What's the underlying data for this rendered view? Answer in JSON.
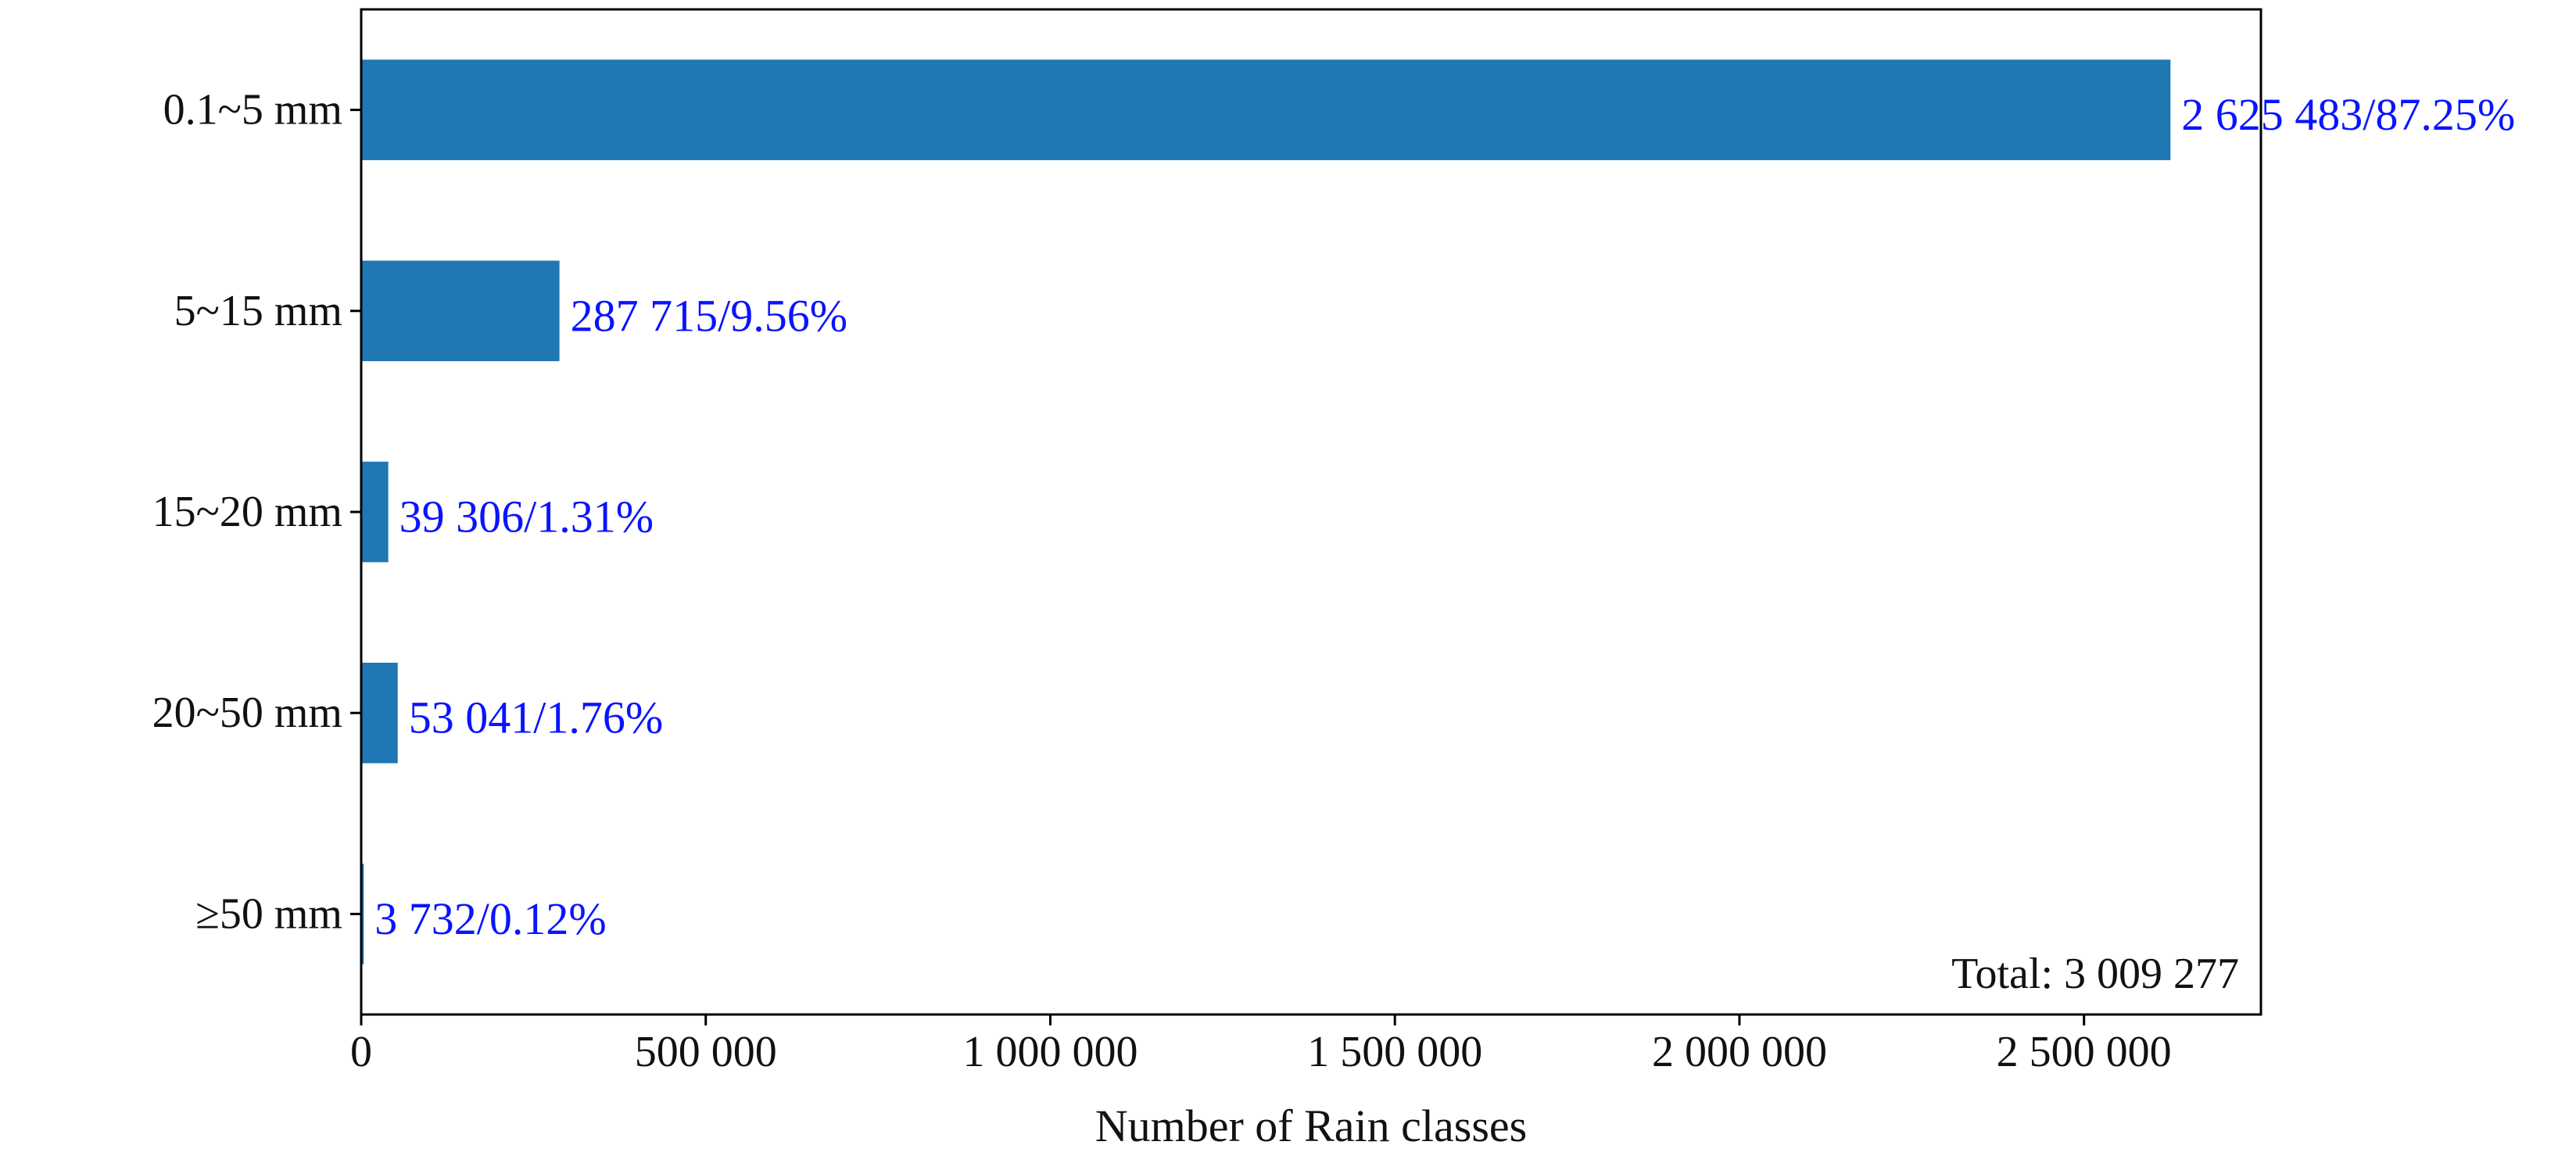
{
  "colors": {
    "bar": "#1f77b4",
    "data_label": "#0a14ff",
    "axis": "#000000",
    "text": "#111111",
    "background": "#ffffff"
  },
  "chart_data": {
    "type": "bar",
    "orientation": "horizontal",
    "title": "",
    "xlabel": "Number of Rain classes",
    "ylabel": "",
    "categories": [
      "0.1~5 mm",
      "5~15 mm",
      "15~20 mm",
      "20~50 mm",
      "≥50 mm"
    ],
    "values": [
      2625483,
      287715,
      39306,
      53041,
      3732
    ],
    "data_labels": [
      "2 625 483/87.25%",
      "287 715/9.56%",
      "39 306/1.31%",
      "53 041/1.76%",
      "3 732/0.12%"
    ],
    "xlim": [
      0,
      2756757
    ],
    "x_ticks": [
      0,
      500000,
      1000000,
      1500000,
      2000000,
      2500000
    ],
    "x_tick_labels": [
      "0",
      "500 000",
      "1 000 000",
      "1 500 000",
      "2 000 000",
      "2 500 000"
    ],
    "annotation": "Total: 3 009 277",
    "annotation_position": "bottom-right",
    "grid": false,
    "legend": "none"
  }
}
